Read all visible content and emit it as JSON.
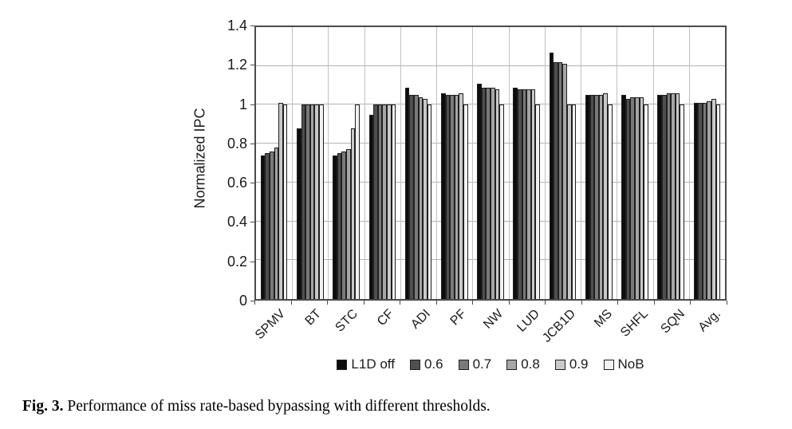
{
  "chart_data": {
    "type": "bar",
    "title": "",
    "xlabel": "",
    "ylabel": "Normalized IPC",
    "ylim": [
      0,
      1.4
    ],
    "yticks": [
      "0",
      "0.2",
      "0.4",
      "0.6",
      "0.8",
      "1",
      "1.2",
      "1.4"
    ],
    "grid": true,
    "legend_position": "bottom",
    "categories": [
      "SPMV",
      "BT",
      "STC",
      "CF",
      "ADI",
      "PF",
      "NW",
      "LUD",
      "JCB1D",
      "MS",
      "SHFL",
      "SQN",
      "Avg."
    ],
    "series": [
      {
        "name": "L1D off",
        "color": "#0d0d0d",
        "values": [
          0.74,
          0.88,
          0.74,
          0.95,
          1.09,
          1.06,
          1.11,
          1.09,
          1.27,
          1.05,
          1.05,
          1.05,
          1.01
        ]
      },
      {
        "name": "0.6",
        "color": "#4f4f4f",
        "values": [
          0.75,
          1.0,
          0.75,
          1.0,
          1.05,
          1.05,
          1.09,
          1.08,
          1.22,
          1.05,
          1.03,
          1.05,
          1.01
        ]
      },
      {
        "name": "0.7",
        "color": "#7a7a7a",
        "values": [
          0.76,
          1.0,
          0.76,
          1.0,
          1.05,
          1.05,
          1.09,
          1.08,
          1.22,
          1.05,
          1.04,
          1.06,
          1.01
        ]
      },
      {
        "name": "0.8",
        "color": "#a6a6a6",
        "values": [
          0.78,
          1.0,
          0.77,
          1.0,
          1.04,
          1.05,
          1.09,
          1.08,
          1.21,
          1.05,
          1.04,
          1.06,
          1.02
        ]
      },
      {
        "name": "0.9",
        "color": "#c9c9c9",
        "values": [
          1.01,
          1.0,
          0.88,
          1.0,
          1.03,
          1.06,
          1.08,
          1.08,
          1.0,
          1.06,
          1.04,
          1.06,
          1.03
        ]
      },
      {
        "name": "NoB",
        "color": "#f2f2f2",
        "values": [
          1.0,
          1.0,
          1.0,
          1.0,
          1.0,
          1.0,
          1.0,
          1.0,
          1.0,
          1.0,
          1.0,
          1.0,
          1.0
        ]
      }
    ]
  },
  "caption": {
    "label": "Fig. 3.",
    "text": "Performance of miss rate-based bypassing with different thresholds."
  }
}
